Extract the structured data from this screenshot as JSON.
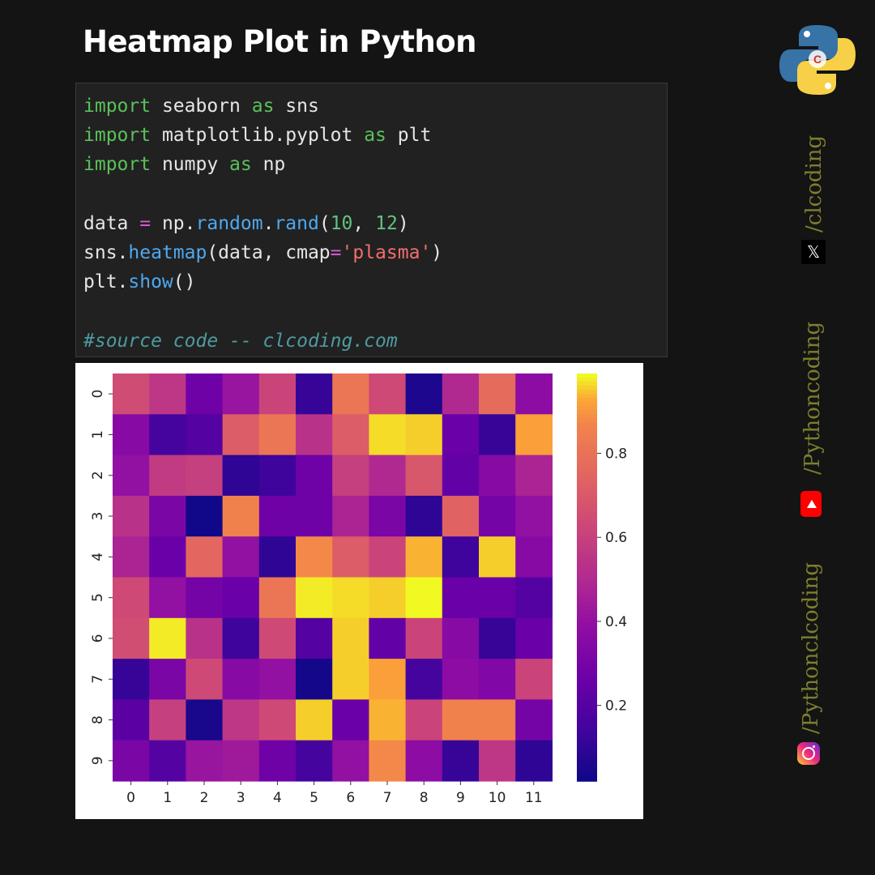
{
  "title": "Heatmap Plot in Python",
  "code": {
    "lines": [
      [
        {
          "t": "import",
          "c": "kw"
        },
        {
          "t": " seaborn "
        },
        {
          "t": "as",
          "c": "kw"
        },
        {
          "t": " sns"
        }
      ],
      [
        {
          "t": "import",
          "c": "kw"
        },
        {
          "t": " matplotlib.pyplot "
        },
        {
          "t": "as",
          "c": "kw"
        },
        {
          "t": " plt"
        }
      ],
      [
        {
          "t": "import",
          "c": "kw"
        },
        {
          "t": " numpy "
        },
        {
          "t": "as",
          "c": "kw"
        },
        {
          "t": " np"
        }
      ],
      [],
      [
        {
          "t": "data "
        },
        {
          "t": "=",
          "c": "op"
        },
        {
          "t": " np."
        },
        {
          "t": "random",
          "c": "fn"
        },
        {
          "t": "."
        },
        {
          "t": "rand",
          "c": "fn"
        },
        {
          "t": "("
        },
        {
          "t": "10",
          "c": "num"
        },
        {
          "t": ", "
        },
        {
          "t": "12",
          "c": "num"
        },
        {
          "t": ")"
        }
      ],
      [
        {
          "t": "sns."
        },
        {
          "t": "heatmap",
          "c": "fn"
        },
        {
          "t": "(data, cmap"
        },
        {
          "t": "=",
          "c": "op"
        },
        {
          "t": "'plasma'",
          "c": "str"
        },
        {
          "t": ")"
        }
      ],
      [
        {
          "t": "plt."
        },
        {
          "t": "show",
          "c": "fn"
        },
        {
          "t": "()"
        }
      ],
      [],
      [
        {
          "t": "#source code -- clcoding.com",
          "c": "cm"
        }
      ]
    ]
  },
  "social": {
    "x_handle": "/clcoding",
    "x_icon": "x-icon",
    "youtube_handle": "/Pythoncoding",
    "youtube_icon": "youtube-icon",
    "instagram_handle": "/Pythonclcoding",
    "instagram_icon": "instagram-icon",
    "logo": "python-logo",
    "x_glyph": "𝕏"
  },
  "chart_data": {
    "type": "heatmap",
    "colormap": "plasma",
    "x_labels": [
      "0",
      "1",
      "2",
      "3",
      "4",
      "5",
      "6",
      "7",
      "8",
      "9",
      "10",
      "11"
    ],
    "y_labels": [
      "0",
      "1",
      "2",
      "3",
      "4",
      "5",
      "6",
      "7",
      "8",
      "9"
    ],
    "values": [
      [
        0.65,
        0.56,
        0.28,
        0.42,
        0.62,
        0.12,
        0.82,
        0.64,
        0.06,
        0.5,
        0.78,
        0.38
      ],
      [
        0.36,
        0.16,
        0.2,
        0.72,
        0.82,
        0.54,
        0.72,
        0.97,
        0.96,
        0.26,
        0.12,
        0.92
      ],
      [
        0.4,
        0.58,
        0.6,
        0.1,
        0.14,
        0.28,
        0.6,
        0.5,
        0.7,
        0.24,
        0.36,
        0.48
      ],
      [
        0.54,
        0.32,
        0.03,
        0.86,
        0.28,
        0.28,
        0.48,
        0.32,
        0.1,
        0.74,
        0.3,
        0.4
      ],
      [
        0.48,
        0.26,
        0.76,
        0.4,
        0.1,
        0.88,
        0.72,
        0.62,
        0.94,
        0.14,
        0.96,
        0.36
      ],
      [
        0.64,
        0.4,
        0.3,
        0.26,
        0.82,
        0.98,
        0.97,
        0.96,
        0.99,
        0.26,
        0.26,
        0.2
      ],
      [
        0.66,
        0.98,
        0.54,
        0.14,
        0.64,
        0.2,
        0.96,
        0.24,
        0.62,
        0.36,
        0.12,
        0.26
      ],
      [
        0.12,
        0.32,
        0.64,
        0.36,
        0.4,
        0.04,
        0.96,
        0.92,
        0.16,
        0.38,
        0.34,
        0.62
      ],
      [
        0.22,
        0.6,
        0.05,
        0.56,
        0.64,
        0.96,
        0.26,
        0.94,
        0.62,
        0.86,
        0.86,
        0.3
      ],
      [
        0.32,
        0.2,
        0.42,
        0.44,
        0.28,
        0.16,
        0.4,
        0.88,
        0.38,
        0.12,
        0.56,
        0.1
      ]
    ],
    "colorbar_ticks": [
      "0.2",
      "0.4",
      "0.6",
      "0.8"
    ],
    "colorbar_tick_values": [
      0.2,
      0.4,
      0.6,
      0.8
    ],
    "vmin": 0.02,
    "vmax": 0.99
  }
}
